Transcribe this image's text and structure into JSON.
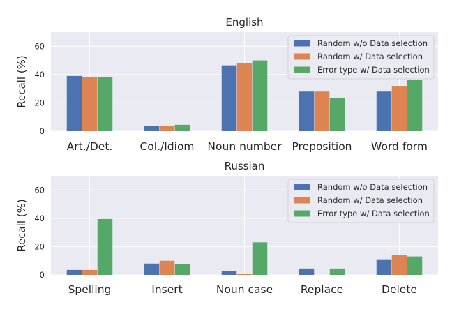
{
  "chart_data": [
    {
      "type": "bar",
      "title": "English",
      "xlabel": "",
      "ylabel": "Recall (%)",
      "ylim": [
        0,
        70
      ],
      "yticks": [
        0,
        20,
        40,
        60
      ],
      "grid": true,
      "legend_position": "top-right",
      "categories": [
        "Art./Det.",
        "Col./Idiom",
        "Noun number",
        "Preposition",
        "Word form"
      ],
      "series": [
        {
          "name": "Random w/o Data selection",
          "color": "#4C72B0",
          "values": [
            39,
            3.5,
            46.5,
            28,
            28
          ]
        },
        {
          "name": "Random w/ Data selection",
          "color": "#DD8452",
          "values": [
            38,
            3.5,
            48,
            28,
            32
          ]
        },
        {
          "name": "Error type w/ Data selection",
          "color": "#55A868",
          "values": [
            38,
            4.5,
            50,
            23.5,
            36
          ]
        }
      ]
    },
    {
      "type": "bar",
      "title": "Russian",
      "xlabel": "",
      "ylabel": "Recall (%)",
      "ylim": [
        0,
        70
      ],
      "yticks": [
        0,
        20,
        40,
        60
      ],
      "grid": true,
      "legend_position": "top-right",
      "categories": [
        "Spelling",
        "Insert",
        "Noun case",
        "Replace",
        "Delete"
      ],
      "series": [
        {
          "name": "Random w/o Data selection",
          "color": "#4C72B0",
          "values": [
            3.5,
            8,
            2.5,
            4.5,
            11
          ]
        },
        {
          "name": "Random w/ Data selection",
          "color": "#DD8452",
          "values": [
            3.5,
            10,
            1,
            0,
            14
          ]
        },
        {
          "name": "Error type w/ Data selection",
          "color": "#55A868",
          "values": [
            39.5,
            7.5,
            23,
            4.5,
            13
          ]
        }
      ]
    }
  ]
}
